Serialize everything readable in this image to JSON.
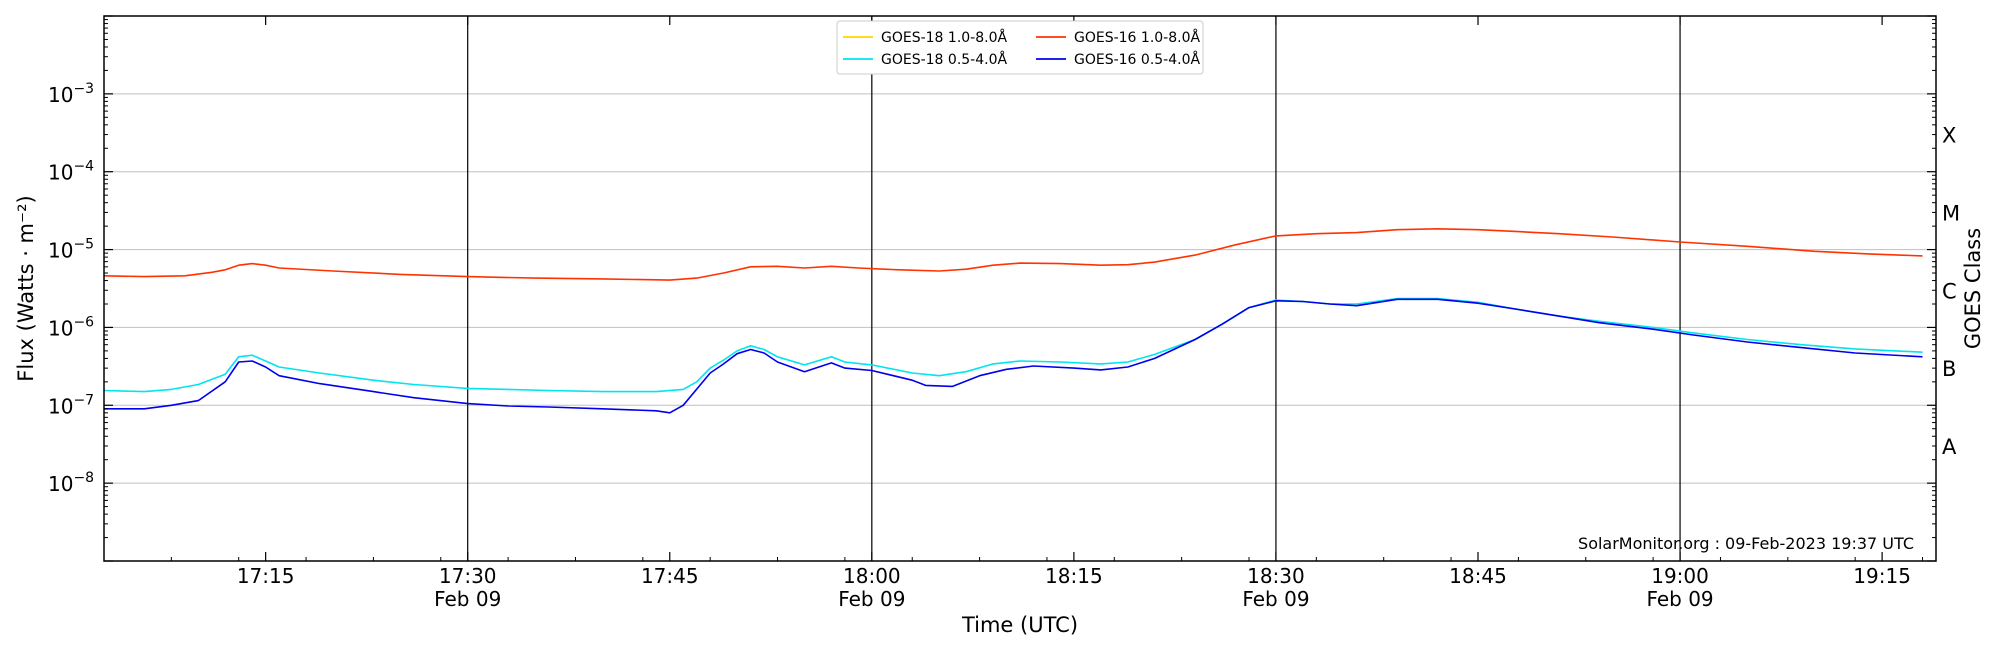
{
  "chart_data": {
    "type": "line",
    "xlabel": "Time (UTC)",
    "ylabel": "Flux (Watts · m⁻²)",
    "y2label": "GOES Class",
    "yscale": "log",
    "ylim": [
      1e-09,
      0.01
    ],
    "xlim": [
      "17:03",
      "19:19"
    ],
    "x_ticks": [
      {
        "time": "17:15",
        "line1": "17:15",
        "line2": ""
      },
      {
        "time": "17:30",
        "line1": "17:30",
        "line2": "Feb 09"
      },
      {
        "time": "17:45",
        "line1": "17:45",
        "line2": ""
      },
      {
        "time": "18:00",
        "line1": "18:00",
        "line2": "Feb 09"
      },
      {
        "time": "18:15",
        "line1": "18:15",
        "line2": ""
      },
      {
        "time": "18:30",
        "line1": "18:30",
        "line2": "Feb 09"
      },
      {
        "time": "18:45",
        "line1": "18:45",
        "line2": ""
      },
      {
        "time": "19:00",
        "line1": "19:00",
        "line2": "Feb 09"
      },
      {
        "time": "19:15",
        "line1": "19:15",
        "line2": ""
      }
    ],
    "y_ticks": [
      {
        "exp": -8,
        "base": "10",
        "sup": "−8"
      },
      {
        "exp": -7,
        "base": "10",
        "sup": "−7"
      },
      {
        "exp": -6,
        "base": "10",
        "sup": "−6"
      },
      {
        "exp": -5,
        "base": "10",
        "sup": "−5"
      },
      {
        "exp": -4,
        "base": "10",
        "sup": "−4"
      },
      {
        "exp": -3,
        "base": "10",
        "sup": "−3"
      }
    ],
    "class_labels": [
      {
        "label": "A",
        "flux": 3e-08
      },
      {
        "label": "B",
        "flux": 3e-07
      },
      {
        "label": "C",
        "flux": 3e-06
      },
      {
        "label": "M",
        "flux": 3e-05
      },
      {
        "label": "X",
        "flux": 0.0003
      }
    ],
    "vertical_lines": [
      "17:30",
      "18:00",
      "18:30",
      "19:00"
    ],
    "grid": "horizontal at decades",
    "legend": "top-center",
    "credit": "SolarMonitor.org : 09-Feb-2023 19:37 UTC",
    "series": [
      {
        "name": "GOES-18 1.0-8.0Å",
        "color": "#FFD700",
        "points": []
      },
      {
        "name": "GOES-18 0.5-4.0Å",
        "color": "#00E5EE",
        "points": [
          [
            "17:03",
            1.55e-07
          ],
          [
            "17:06",
            1.5e-07
          ],
          [
            "17:08",
            1.6e-07
          ],
          [
            "17:10",
            1.85e-07
          ],
          [
            "17:12",
            2.5e-07
          ],
          [
            "17:13",
            4.2e-07
          ],
          [
            "17:14",
            4.4e-07
          ],
          [
            "17:15",
            3.7e-07
          ],
          [
            "17:16",
            3.1e-07
          ],
          [
            "17:19",
            2.6e-07
          ],
          [
            "17:23",
            2.1e-07
          ],
          [
            "17:26",
            1.85e-07
          ],
          [
            "17:30",
            1.65e-07
          ],
          [
            "17:33",
            1.6e-07
          ],
          [
            "17:36",
            1.55e-07
          ],
          [
            "17:40",
            1.5e-07
          ],
          [
            "17:44",
            1.5e-07
          ],
          [
            "17:46",
            1.6e-07
          ],
          [
            "17:47",
            2e-07
          ],
          [
            "17:48",
            3e-07
          ],
          [
            "17:49",
            3.8e-07
          ],
          [
            "17:50",
            5e-07
          ],
          [
            "17:51",
            5.8e-07
          ],
          [
            "17:52",
            5.2e-07
          ],
          [
            "17:53",
            4.2e-07
          ],
          [
            "17:55",
            3.3e-07
          ],
          [
            "17:57",
            4.2e-07
          ],
          [
            "17:58",
            3.6e-07
          ],
          [
            "18:00",
            3.3e-07
          ],
          [
            "18:03",
            2.6e-07
          ],
          [
            "18:05",
            2.4e-07
          ],
          [
            "18:07",
            2.7e-07
          ],
          [
            "18:09",
            3.4e-07
          ],
          [
            "18:11",
            3.7e-07
          ],
          [
            "18:14",
            3.6e-07
          ],
          [
            "18:17",
            3.4e-07
          ],
          [
            "18:19",
            3.6e-07
          ],
          [
            "18:21",
            4.5e-07
          ],
          [
            "18:24",
            7e-07
          ],
          [
            "18:26",
            1.1e-06
          ],
          [
            "18:28",
            1.8e-06
          ],
          [
            "18:30",
            2.25e-06
          ],
          [
            "18:32",
            2.15e-06
          ],
          [
            "18:34",
            2e-06
          ],
          [
            "18:36",
            2e-06
          ],
          [
            "18:39",
            2.35e-06
          ],
          [
            "18:42",
            2.35e-06
          ],
          [
            "18:45",
            2.1e-06
          ],
          [
            "18:48",
            1.7e-06
          ],
          [
            "18:51",
            1.4e-06
          ],
          [
            "18:54",
            1.2e-06
          ],
          [
            "18:58",
            1e-06
          ],
          [
            "19:01",
            8.5e-07
          ],
          [
            "19:05",
            7e-07
          ],
          [
            "19:09",
            6e-07
          ],
          [
            "19:13",
            5.3e-07
          ],
          [
            "19:18",
            4.8e-07
          ]
        ]
      },
      {
        "name": "GOES-16 1.0-8.0Å",
        "color": "#FF3300",
        "points": [
          [
            "17:03",
            4.6e-06
          ],
          [
            "17:06",
            4.5e-06
          ],
          [
            "17:09",
            4.6e-06
          ],
          [
            "17:11",
            5.1e-06
          ],
          [
            "17:12",
            5.5e-06
          ],
          [
            "17:13",
            6.3e-06
          ],
          [
            "17:14",
            6.6e-06
          ],
          [
            "17:15",
            6.3e-06
          ],
          [
            "17:16",
            5.8e-06
          ],
          [
            "17:20",
            5.3e-06
          ],
          [
            "17:25",
            4.8e-06
          ],
          [
            "17:30",
            4.5e-06
          ],
          [
            "17:35",
            4.3e-06
          ],
          [
            "17:40",
            4.2e-06
          ],
          [
            "17:45",
            4.05e-06
          ],
          [
            "17:47",
            4.3e-06
          ],
          [
            "17:49",
            5e-06
          ],
          [
            "17:51",
            6e-06
          ],
          [
            "17:53",
            6.1e-06
          ],
          [
            "17:55",
            5.8e-06
          ],
          [
            "17:57",
            6.1e-06
          ],
          [
            "17:59",
            5.8e-06
          ],
          [
            "18:02",
            5.5e-06
          ],
          [
            "18:05",
            5.3e-06
          ],
          [
            "18:07",
            5.6e-06
          ],
          [
            "18:09",
            6.3e-06
          ],
          [
            "18:11",
            6.7e-06
          ],
          [
            "18:14",
            6.6e-06
          ],
          [
            "18:17",
            6.3e-06
          ],
          [
            "18:19",
            6.4e-06
          ],
          [
            "18:21",
            6.9e-06
          ],
          [
            "18:24",
            8.5e-06
          ],
          [
            "18:27",
            1.15e-05
          ],
          [
            "18:30",
            1.5e-05
          ],
          [
            "18:33",
            1.6e-05
          ],
          [
            "18:36",
            1.65e-05
          ],
          [
            "18:39",
            1.8e-05
          ],
          [
            "18:42",
            1.85e-05
          ],
          [
            "18:45",
            1.8e-05
          ],
          [
            "18:48",
            1.7e-05
          ],
          [
            "18:51",
            1.6e-05
          ],
          [
            "18:55",
            1.45e-05
          ],
          [
            "19:00",
            1.25e-05
          ],
          [
            "19:05",
            1.1e-05
          ],
          [
            "19:10",
            9.5e-06
          ],
          [
            "19:14",
            8.8e-06
          ],
          [
            "19:18",
            8.3e-06
          ]
        ]
      },
      {
        "name": "GOES-16 0.5-4.0Å",
        "color": "#0000EE",
        "points": [
          [
            "17:03",
            9e-08
          ],
          [
            "17:06",
            9e-08
          ],
          [
            "17:08",
            1e-07
          ],
          [
            "17:10",
            1.15e-07
          ],
          [
            "17:12",
            2e-07
          ],
          [
            "17:13",
            3.6e-07
          ],
          [
            "17:14",
            3.7e-07
          ],
          [
            "17:15",
            3.1e-07
          ],
          [
            "17:16",
            2.4e-07
          ],
          [
            "17:19",
            1.9e-07
          ],
          [
            "17:23",
            1.5e-07
          ],
          [
            "17:26",
            1.25e-07
          ],
          [
            "17:30",
            1.05e-07
          ],
          [
            "17:33",
            9.8e-08
          ],
          [
            "17:36",
            9.5e-08
          ],
          [
            "17:40",
            9e-08
          ],
          [
            "17:44",
            8.5e-08
          ],
          [
            "17:45",
            8e-08
          ],
          [
            "17:46",
            1e-07
          ],
          [
            "17:48",
            2.6e-07
          ],
          [
            "17:49",
            3.4e-07
          ],
          [
            "17:50",
            4.6e-07
          ],
          [
            "17:51",
            5.2e-07
          ],
          [
            "17:52",
            4.7e-07
          ],
          [
            "17:53",
            3.6e-07
          ],
          [
            "17:55",
            2.7e-07
          ],
          [
            "17:57",
            3.5e-07
          ],
          [
            "17:58",
            3e-07
          ],
          [
            "18:00",
            2.8e-07
          ],
          [
            "18:03",
            2.1e-07
          ],
          [
            "18:04",
            1.8e-07
          ],
          [
            "18:06",
            1.75e-07
          ],
          [
            "18:08",
            2.4e-07
          ],
          [
            "18:10",
            2.9e-07
          ],
          [
            "18:12",
            3.2e-07
          ],
          [
            "18:15",
            3e-07
          ],
          [
            "18:17",
            2.85e-07
          ],
          [
            "18:19",
            3.1e-07
          ],
          [
            "18:21",
            4e-07
          ],
          [
            "18:24",
            7e-07
          ],
          [
            "18:26",
            1.1e-06
          ],
          [
            "18:28",
            1.8e-06
          ],
          [
            "18:30",
            2.2e-06
          ],
          [
            "18:32",
            2.15e-06
          ],
          [
            "18:34",
            2e-06
          ],
          [
            "18:36",
            1.9e-06
          ],
          [
            "18:39",
            2.3e-06
          ],
          [
            "18:42",
            2.3e-06
          ],
          [
            "18:45",
            2.05e-06
          ],
          [
            "18:48",
            1.7e-06
          ],
          [
            "18:51",
            1.4e-06
          ],
          [
            "18:54",
            1.15e-06
          ],
          [
            "18:58",
            9.5e-07
          ],
          [
            "19:01",
            8e-07
          ],
          [
            "19:05",
            6.5e-07
          ],
          [
            "19:09",
            5.5e-07
          ],
          [
            "19:13",
            4.7e-07
          ],
          [
            "19:18",
            4.2e-07
          ]
        ]
      }
    ]
  }
}
